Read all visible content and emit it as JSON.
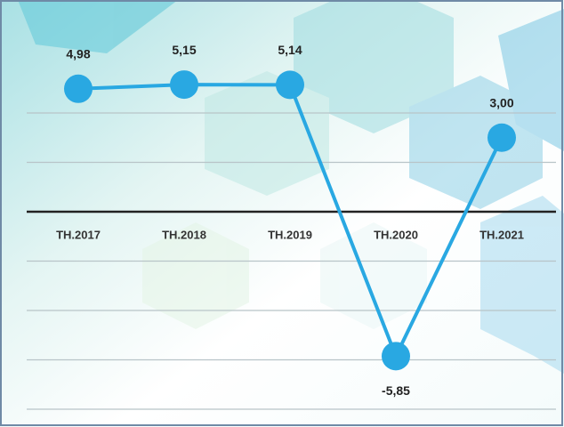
{
  "chart_data": {
    "type": "line",
    "categories": [
      "TH.2017",
      "TH.2018",
      "TH.2019",
      "TH.2020",
      "TH.2021"
    ],
    "series": [
      {
        "color": "#29a8e2",
        "values": [
          4.98,
          5.15,
          5.14,
          -5.85,
          3.0
        ],
        "value_labels": [
          "4,98",
          "5,15",
          "5,14",
          "-5,85",
          "3,00"
        ]
      }
    ],
    "ylim": [
      -8,
      8
    ],
    "yticks": [
      -8,
      -6,
      -4,
      -2,
      0,
      2,
      4
    ],
    "grid": true
  }
}
